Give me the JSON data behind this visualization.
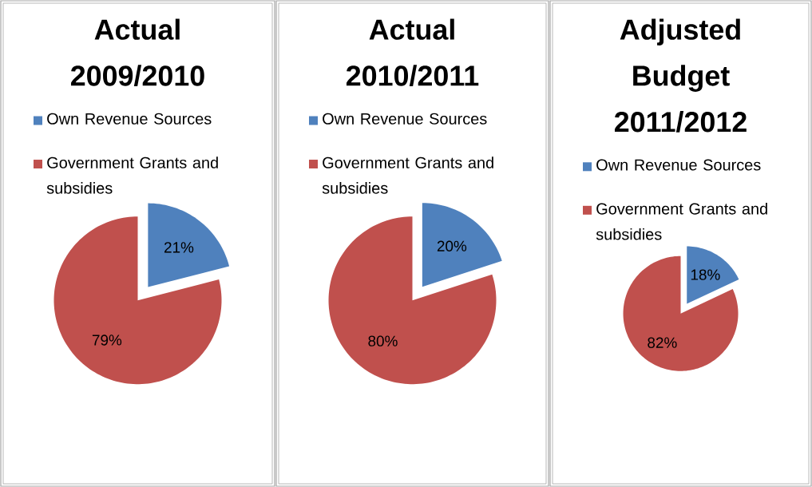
{
  "chart_data": [
    {
      "type": "pie",
      "title": "Actual 2009/2010",
      "categories": [
        "Own Revenue Sources",
        "Government Grants and subsidies"
      ],
      "values": [
        21,
        79
      ],
      "value_labels": [
        "21%",
        "79%"
      ],
      "colors": [
        "#4f81bd",
        "#c0504d"
      ],
      "legend": "top"
    },
    {
      "type": "pie",
      "title": "Actual 2010/2011",
      "categories": [
        "Own Revenue Sources",
        "Government Grants and subsidies"
      ],
      "values": [
        20,
        80
      ],
      "value_labels": [
        "20%",
        "80%"
      ],
      "colors": [
        "#4f81bd",
        "#c0504d"
      ],
      "legend": "top"
    },
    {
      "type": "pie",
      "title": "Adjusted Budget 2011/2012",
      "categories": [
        "Own Revenue Sources",
        "Government Grants and subsidies"
      ],
      "values": [
        18,
        82
      ],
      "value_labels": [
        "18%",
        "82%"
      ],
      "colors": [
        "#4f81bd",
        "#c0504d"
      ],
      "legend": "top"
    }
  ]
}
